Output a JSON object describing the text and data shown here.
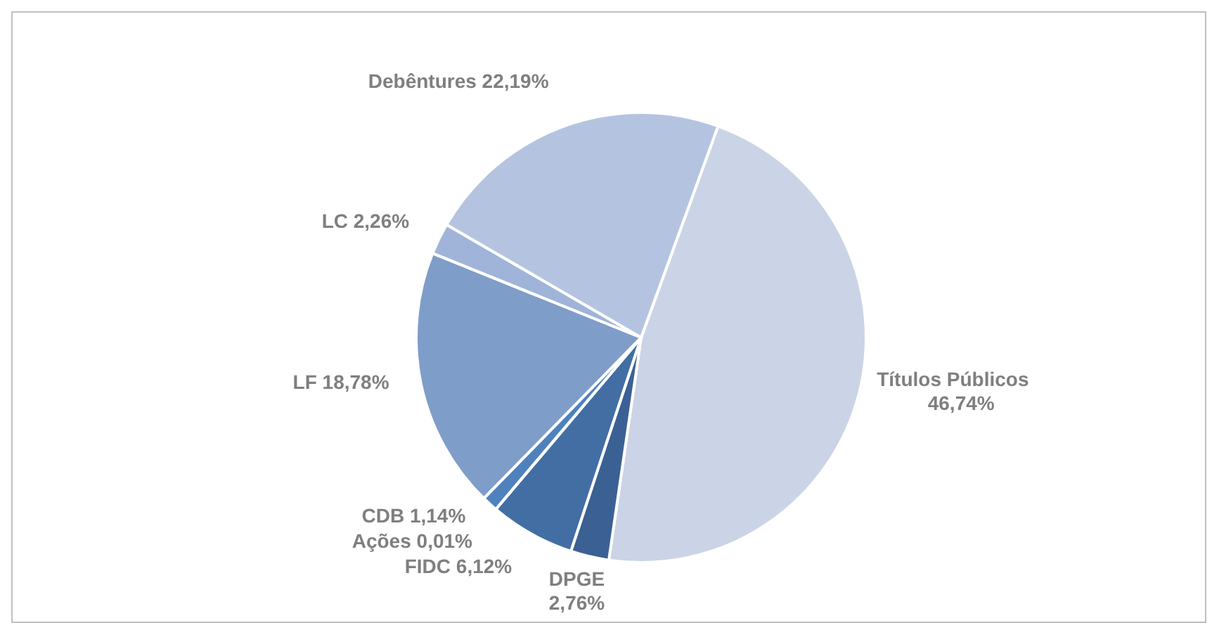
{
  "chart_data": {
    "type": "pie",
    "categories": [
      "Títulos Públicos",
      "DPGE",
      "FIDC",
      "Ações",
      "CDB",
      "LF",
      "LC",
      "Debêntures"
    ],
    "values": [
      46.74,
      2.76,
      6.12,
      0.01,
      1.14,
      18.78,
      2.26,
      22.19
    ],
    "colors": [
      "#cad4e6",
      "#3b6194",
      "#426ea4",
      "#4a78b4",
      "#4f81bd",
      "#7f9dc9",
      "#9fb4d8",
      "#b4c4e0"
    ],
    "value_labels": [
      "46,74%",
      "2,76%",
      "6,12%",
      "0,01%",
      "1,14%",
      "18,78%",
      "2,26%",
      "22,19%"
    ],
    "legend": false
  }
}
